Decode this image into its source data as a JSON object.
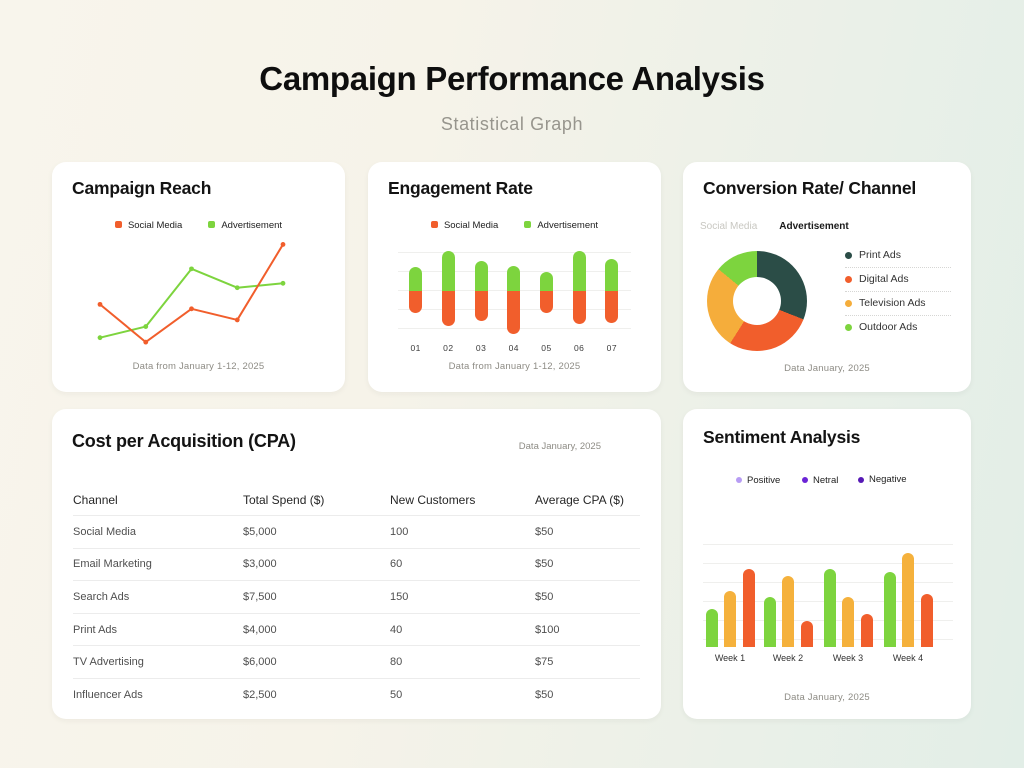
{
  "page": {
    "title": "Campaign Performance Analysis",
    "subtitle": "Statistical Graph"
  },
  "chart_data": [
    {
      "id": "campaign-reach",
      "type": "line",
      "title": "Campaign Reach",
      "caption": "Data from January 1-12, 2025",
      "x": [
        1,
        2,
        3,
        4,
        5
      ],
      "series": [
        {
          "name": "Social Media",
          "color": "#F15E2C",
          "values": [
            42,
            8,
            38,
            28,
            96
          ]
        },
        {
          "name": "Advertisement",
          "color": "#7DD43E",
          "values": [
            12,
            22,
            74,
            57,
            61
          ]
        }
      ],
      "ylim": [
        0,
        100
      ],
      "grid": false,
      "legend_position": "top"
    },
    {
      "id": "engagement-rate",
      "type": "bar",
      "subtype": "stacked-pill-diverging",
      "title": "Engagement Rate",
      "caption": "Data from January 1-12, 2025",
      "categories": [
        "01",
        "02",
        "03",
        "04",
        "05",
        "06",
        "07"
      ],
      "series": [
        {
          "name": "Social Media",
          "color": "#F15E2C",
          "direction": "down",
          "values": [
            22,
            35,
            30,
            43,
            22,
            33,
            32
          ]
        },
        {
          "name": "Advertisement",
          "color": "#7DD43E",
          "direction": "up",
          "values": [
            24,
            40,
            30,
            25,
            19,
            40,
            32
          ]
        }
      ],
      "ylim": [
        0,
        50
      ],
      "grid": true,
      "legend_position": "top"
    },
    {
      "id": "conversion-rate-channel",
      "type": "pie",
      "subtype": "donut",
      "title": "Conversion Rate/ Channel",
      "caption": "Data January, 2025",
      "tabs": {
        "inactive": "Social Media",
        "active": "Advertisement"
      },
      "labels": [
        "Print Ads",
        "Digital Ads",
        "Television Ads",
        "Outdoor Ads"
      ],
      "values": [
        31,
        28,
        27,
        14
      ],
      "colors": [
        "#2B4D47",
        "#F15E2C",
        "#F5AD3B",
        "#7DD43E"
      ],
      "legend_position": "right"
    },
    {
      "id": "cost-per-acquisition",
      "type": "table",
      "title": "Cost per Acquisition (CPA)",
      "caption": "Data January, 2025",
      "columns": [
        "Channel",
        "Total Spend ($)",
        "New Customers",
        "Average CPA ($)"
      ],
      "rows": [
        [
          "Social Media",
          "$5,000",
          "100",
          "$50"
        ],
        [
          "Email Marketing",
          "$3,000",
          "60",
          "$50"
        ],
        [
          "Search Ads",
          "$7,500",
          "150",
          "$50"
        ],
        [
          "Print Ads",
          "$4,000",
          "40",
          "$100"
        ],
        [
          "TV Advertising",
          "$6,000",
          "80",
          "$75"
        ],
        [
          "Influencer Ads",
          "$2,500",
          "50",
          "$50"
        ]
      ]
    },
    {
      "id": "sentiment-analysis",
      "type": "bar",
      "subtype": "grouped",
      "title": "Sentiment Analysis",
      "caption": "Data January, 2025",
      "categories": [
        "Week 1",
        "Week 2",
        "Week 3",
        "Week 4"
      ],
      "series": [
        {
          "name": "Positive",
          "legend_color": "#B79CF4",
          "color": "#7DD43E",
          "values": [
            38,
            50,
            78,
            75
          ]
        },
        {
          "name": "Netral",
          "legend_color": "#6B24D6",
          "color": "#F5B13C",
          "values": [
            56,
            71,
            50,
            94
          ]
        },
        {
          "name": "Negative",
          "legend_color": "#5619B5",
          "color": "#F15E2C",
          "values": [
            78,
            26,
            33,
            53
          ]
        }
      ],
      "ylim": [
        0,
        100
      ],
      "grid": true,
      "legend_position": "top"
    }
  ]
}
